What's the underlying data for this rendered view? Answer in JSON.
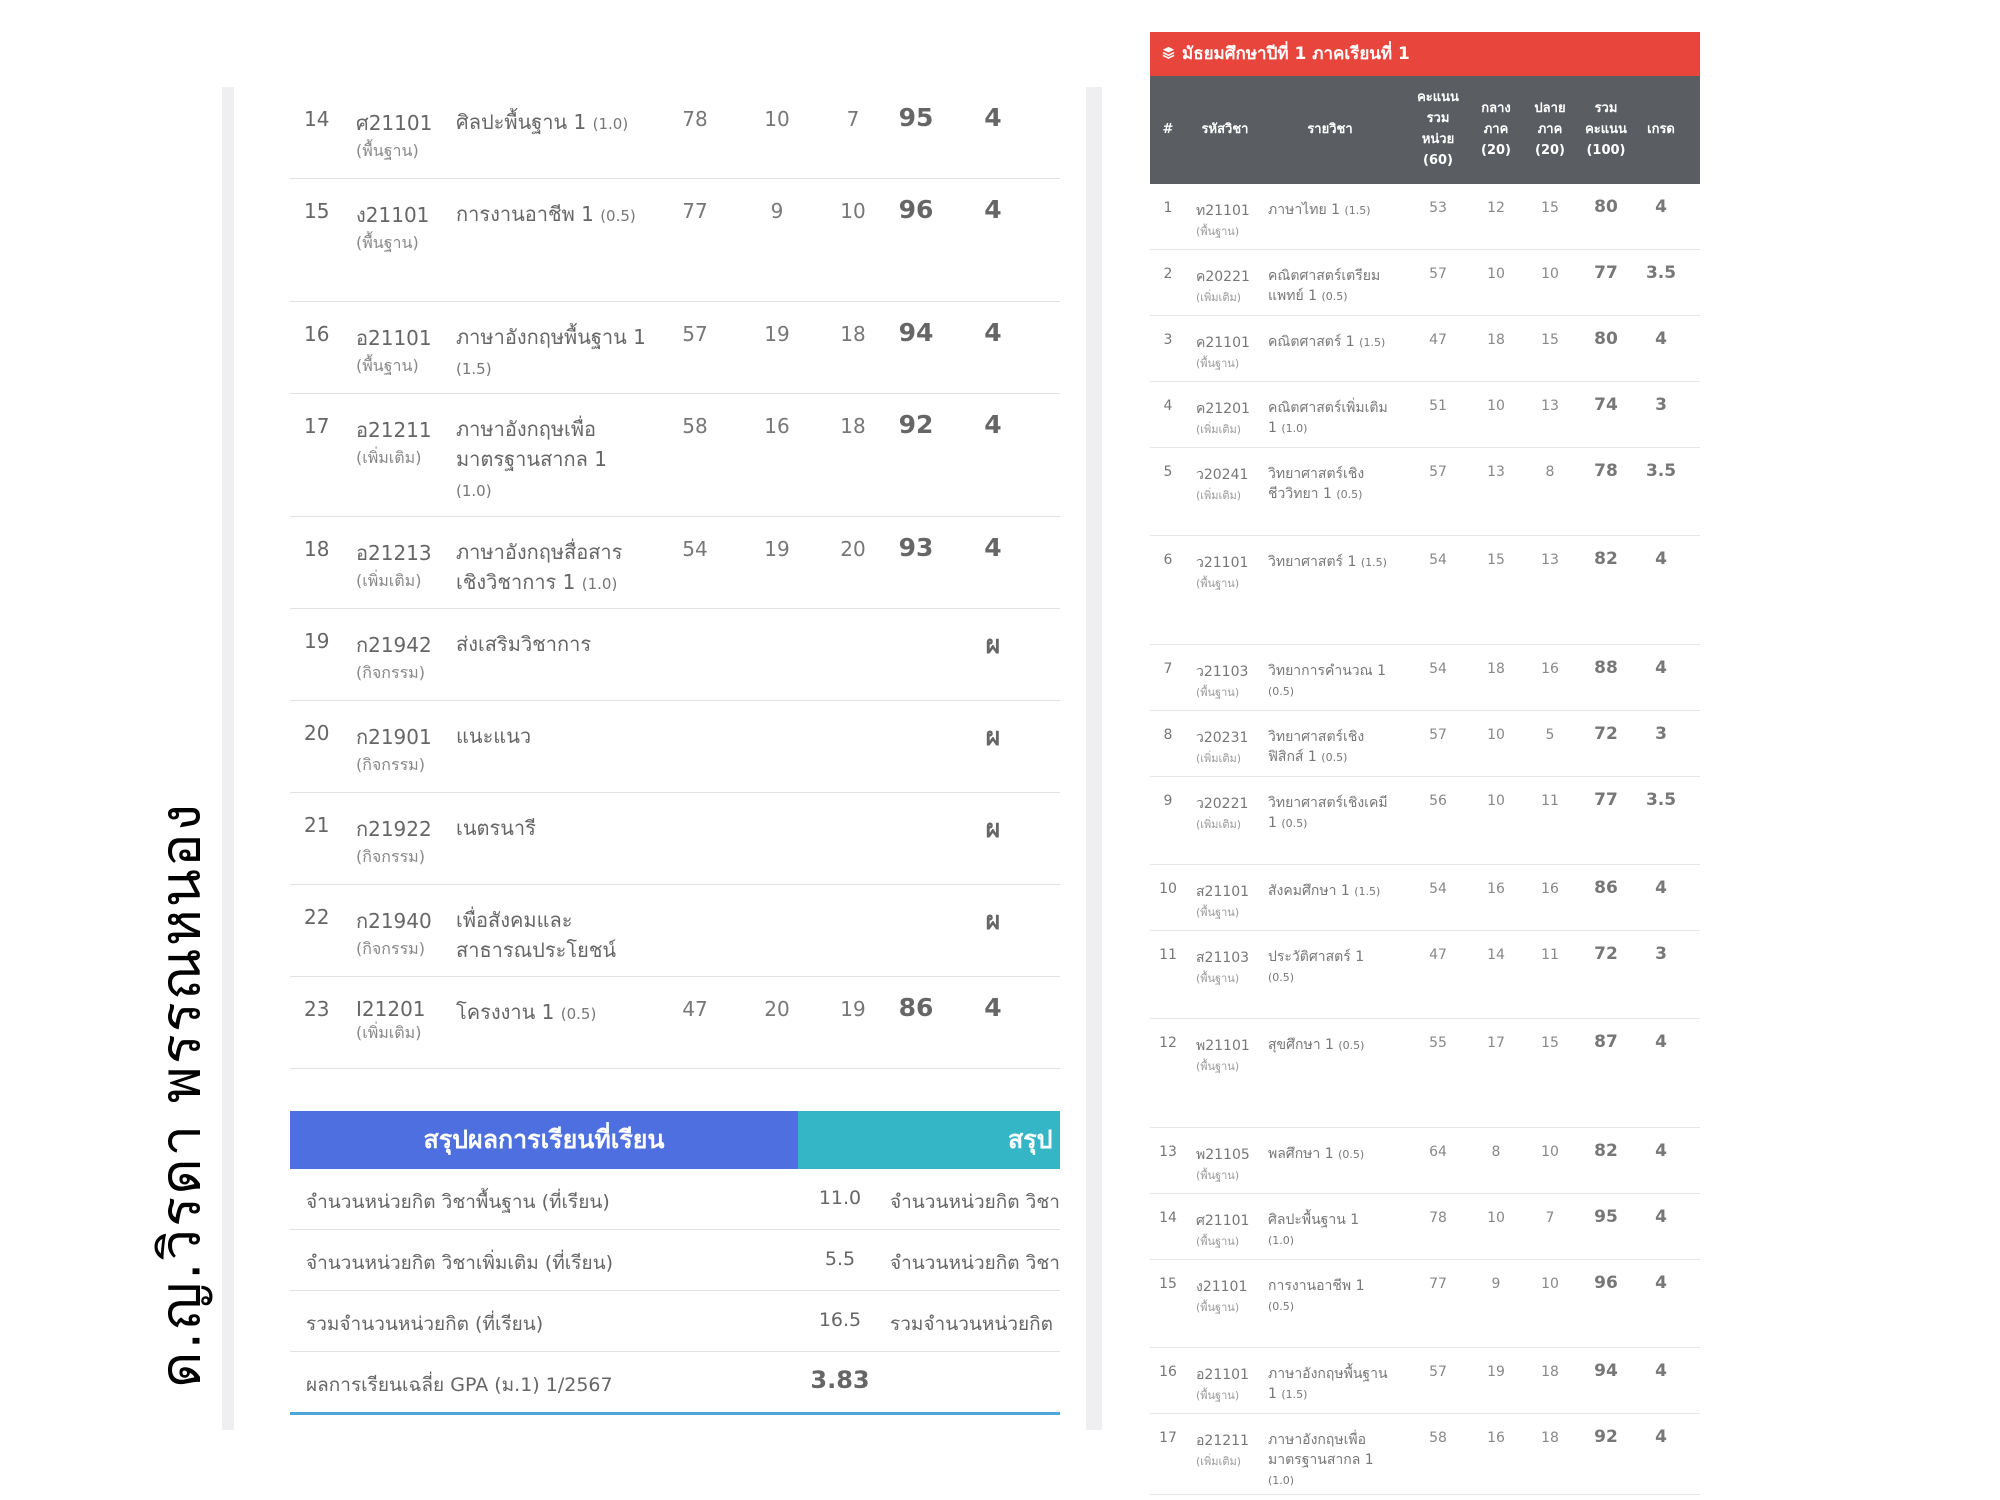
{
  "student_name": "ด.ญ.วิรดา พรรณหนอง",
  "left_table": {
    "rows": [
      {
        "idx": "14",
        "code": "ศ21101",
        "type": "(พื้นฐาน)",
        "name": "ศิลปะพื้นฐาน 1",
        "credit": "(1.0)",
        "score": "78",
        "mid": "10",
        "final": "7",
        "total": "95",
        "grade": "4"
      },
      {
        "idx": "15",
        "code": "ง21101",
        "type": "(พื้นฐาน)",
        "name": "การงานอาชีพ 1",
        "credit": "(0.5)",
        "score": "77",
        "mid": "9",
        "final": "10",
        "total": "96",
        "grade": "4"
      },
      {
        "idx": "16",
        "code": "อ21101",
        "type": "(พื้นฐาน)",
        "name": "ภาษาอังกฤษพื้นฐาน 1",
        "credit": "(1.5)",
        "score": "57",
        "mid": "19",
        "final": "18",
        "total": "94",
        "grade": "4"
      },
      {
        "idx": "17",
        "code": "อ21211",
        "type": "(เพิ่มเติม)",
        "name": "ภาษาอังกฤษเพื่อมาตรฐานสากล 1",
        "credit": "(1.0)",
        "score": "58",
        "mid": "16",
        "final": "18",
        "total": "92",
        "grade": "4"
      },
      {
        "idx": "18",
        "code": "อ21213",
        "type": "(เพิ่มเติม)",
        "name": "ภาษาอังกฤษสื่อสารเชิงวิชาการ 1",
        "credit": "(1.0)",
        "score": "54",
        "mid": "19",
        "final": "20",
        "total": "93",
        "grade": "4"
      },
      {
        "idx": "19",
        "code": "ก21942",
        "type": "(กิจกรรม)",
        "name": "ส่งเสริมวิชาการ",
        "credit": "",
        "score": "",
        "mid": "",
        "final": "",
        "total": "",
        "grade": "ผ"
      },
      {
        "idx": "20",
        "code": "ก21901",
        "type": "(กิจกรรม)",
        "name": "แนะแนว",
        "credit": "",
        "score": "",
        "mid": "",
        "final": "",
        "total": "",
        "grade": "ผ"
      },
      {
        "idx": "21",
        "code": "ก21922",
        "type": "(กิจกรรม)",
        "name": "เนตรนารี",
        "credit": "",
        "score": "",
        "mid": "",
        "final": "",
        "total": "",
        "grade": "ผ"
      },
      {
        "idx": "22",
        "code": "ก21940",
        "type": "(กิจกรรม)",
        "name": "เพื่อสังคมและสาธารณประโยชน์",
        "credit": "",
        "score": "",
        "mid": "",
        "final": "",
        "total": "",
        "grade": "ผ"
      },
      {
        "idx": "23",
        "code": "I21201",
        "type": "(เพิ่มเติม)",
        "name": "โครงงาน 1",
        "credit": "(0.5)",
        "score": "47",
        "mid": "20",
        "final": "19",
        "total": "86",
        "grade": "4"
      }
    ]
  },
  "summary": {
    "header_left": "สรุปผลการเรียนที่เรียน",
    "header_right": "สรุป",
    "rows": [
      {
        "label": "จำนวนหน่วยกิต วิชาพื้นฐาน (ที่เรียน)",
        "value": "11.0",
        "right": "จำนวนหน่วยกิต วิชา"
      },
      {
        "label": "จำนวนหน่วยกิต วิชาเพิ่มเติม (ที่เรียน)",
        "value": "5.5",
        "right": "จำนวนหน่วยกิต วิชา"
      },
      {
        "label": "รวมจำนวนหน่วยกิต (ที่เรียน)",
        "value": "16.5",
        "right": "รวมจำนวนหน่วยกิต"
      },
      {
        "label": "ผลการเรียนเฉลี่ย GPA (ม.1) 1/2567",
        "value": "3.83",
        "right": ""
      }
    ]
  },
  "right_table": {
    "title": "มัธยมศึกษาปีที่ 1 ภาคเรียนที่ 1",
    "headers": {
      "idx": "#",
      "code": "รหัสวิชา",
      "name": "รายวิชา",
      "score_lines": [
        "คะแนน",
        "รวม",
        "หน่วย",
        "(60)"
      ],
      "mid_lines": [
        "กลาง",
        "ภาค",
        "(20)"
      ],
      "final_lines": [
        "ปลาย",
        "ภาค",
        "(20)"
      ],
      "total_lines": [
        "รวม",
        "คะแนน",
        "(100)"
      ],
      "grade": "เกรด"
    },
    "rows": [
      {
        "idx": "1",
        "code": "ท21101",
        "type": "(พื้นฐาน)",
        "name": "ภาษาไทย 1",
        "credit": "(1.5)",
        "score": "53",
        "mid": "12",
        "final": "15",
        "total": "80",
        "grade": "4"
      },
      {
        "idx": "2",
        "code": "ค20221",
        "type": "(เพิ่มเติม)",
        "name": "คณิตศาสตร์เตรียมแพทย์ 1",
        "credit": "(0.5)",
        "score": "57",
        "mid": "10",
        "final": "10",
        "total": "77",
        "grade": "3.5"
      },
      {
        "idx": "3",
        "code": "ค21101",
        "type": "(พื้นฐาน)",
        "name": "คณิตศาสตร์ 1",
        "credit": "(1.5)",
        "score": "47",
        "mid": "18",
        "final": "15",
        "total": "80",
        "grade": "4"
      },
      {
        "idx": "4",
        "code": "ค21201",
        "type": "(เพิ่มเติม)",
        "name": "คณิตศาสตร์เพิ่มเติม 1",
        "credit": "(1.0)",
        "score": "51",
        "mid": "10",
        "final": "13",
        "total": "74",
        "grade": "3"
      },
      {
        "idx": "5",
        "code": "ว20241",
        "type": "(เพิ่มเติม)",
        "name": "วิทยาศาสตร์เชิงชีววิทยา 1",
        "credit": "(0.5)",
        "score": "57",
        "mid": "13",
        "final": "8",
        "total": "78",
        "grade": "3.5"
      },
      {
        "idx": "6",
        "code": "ว21101",
        "type": "(พื้นฐาน)",
        "name": "วิทยาศาสตร์ 1",
        "credit": "(1.5)",
        "score": "54",
        "mid": "15",
        "final": "13",
        "total": "82",
        "grade": "4"
      },
      {
        "idx": "7",
        "code": "ว21103",
        "type": "(พื้นฐาน)",
        "name": "วิทยาการคำนวณ 1",
        "credit": "(0.5)",
        "score": "54",
        "mid": "18",
        "final": "16",
        "total": "88",
        "grade": "4"
      },
      {
        "idx": "8",
        "code": "ว20231",
        "type": "(เพิ่มเติม)",
        "name": "วิทยาศาสตร์เชิงฟิสิกส์ 1",
        "credit": "(0.5)",
        "score": "57",
        "mid": "10",
        "final": "5",
        "total": "72",
        "grade": "3"
      },
      {
        "idx": "9",
        "code": "ว20221",
        "type": "(เพิ่มเติม)",
        "name": "วิทยาศาสตร์เชิงเคมี 1",
        "credit": "(0.5)",
        "score": "56",
        "mid": "10",
        "final": "11",
        "total": "77",
        "grade": "3.5"
      },
      {
        "idx": "10",
        "code": "ส21101",
        "type": "(พื้นฐาน)",
        "name": "สังคมศึกษา 1",
        "credit": "(1.5)",
        "score": "54",
        "mid": "16",
        "final": "16",
        "total": "86",
        "grade": "4"
      },
      {
        "idx": "11",
        "code": "ส21103",
        "type": "(พื้นฐาน)",
        "name": "ประวัติศาสตร์ 1",
        "credit": "(0.5)",
        "score": "47",
        "mid": "14",
        "final": "11",
        "total": "72",
        "grade": "3"
      },
      {
        "idx": "12",
        "code": "พ21101",
        "type": "(พื้นฐาน)",
        "name": "สุขศึกษา 1",
        "credit": "(0.5)",
        "score": "55",
        "mid": "17",
        "final": "15",
        "total": "87",
        "grade": "4"
      },
      {
        "idx": "13",
        "code": "พ21105",
        "type": "(พื้นฐาน)",
        "name": "พลศึกษา 1",
        "credit": "(0.5)",
        "score": "64",
        "mid": "8",
        "final": "10",
        "total": "82",
        "grade": "4"
      },
      {
        "idx": "14",
        "code": "ศ21101",
        "type": "(พื้นฐาน)",
        "name": "ศิลปะพื้นฐาน 1",
        "credit": "(1.0)",
        "score": "78",
        "mid": "10",
        "final": "7",
        "total": "95",
        "grade": "4"
      },
      {
        "idx": "15",
        "code": "ง21101",
        "type": "(พื้นฐาน)",
        "name": "การงานอาชีพ 1",
        "credit": "(0.5)",
        "score": "77",
        "mid": "9",
        "final": "10",
        "total": "96",
        "grade": "4"
      },
      {
        "idx": "16",
        "code": "อ21101",
        "type": "(พื้นฐาน)",
        "name": "ภาษาอังกฤษพื้นฐาน 1",
        "credit": "(1.5)",
        "score": "57",
        "mid": "19",
        "final": "18",
        "total": "94",
        "grade": "4"
      },
      {
        "idx": "17",
        "code": "อ21211",
        "type": "(เพิ่มเติม)",
        "name": "ภาษาอังกฤษเพื่อมาตรฐานสากล 1",
        "credit": "(1.0)",
        "score": "58",
        "mid": "16",
        "final": "18",
        "total": "92",
        "grade": "4"
      }
    ]
  }
}
